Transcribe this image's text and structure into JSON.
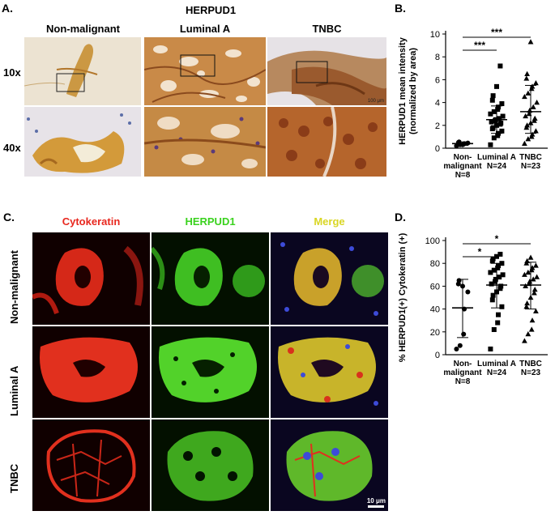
{
  "panel_a": {
    "label": "A.",
    "title": "HERPUD1",
    "columns": [
      "Non-malignant",
      "Luminal A",
      "TNBC"
    ],
    "rows": [
      "10x",
      "40x"
    ],
    "scale_text": "100 μm"
  },
  "panel_b": {
    "label": "B.",
    "chart_data": {
      "type": "scatter",
      "ylabel": "HERPUD1 mean intensity (normalized by area)",
      "ylabel_lines": [
        "HERPUD1 mean intensity",
        "(normalized by area)"
      ],
      "ylim": [
        0,
        10
      ],
      "yticks": [
        0,
        2,
        4,
        6,
        8,
        10
      ],
      "categories": [
        "Non-malignant N=8",
        "Luminal A N=24",
        "TNBC N=23"
      ],
      "category_lines": [
        [
          "Non-",
          "malignant",
          "N=8"
        ],
        [
          "Luminal A",
          "N=24"
        ],
        [
          "TNBC",
          "N=23"
        ]
      ],
      "significance": [
        {
          "from": "Non-malignant N=8",
          "to": "Luminal A N=24",
          "label": "***"
        },
        {
          "from": "Non-malignant N=8",
          "to": "TNBC N=23",
          "label": "***"
        }
      ],
      "series": [
        {
          "values": [
            0.2,
            0.3,
            0.35,
            0.4,
            0.45,
            0.5,
            0.55,
            0.3
          ],
          "mean": 0.4,
          "sd_low": 0.25,
          "sd_high": 0.55,
          "marker": "circle"
        },
        {
          "values": [
            0.3,
            0.9,
            1.1,
            1.3,
            1.5,
            1.7,
            1.8,
            2.0,
            2.1,
            2.2,
            2.3,
            2.4,
            2.5,
            2.6,
            2.8,
            3.0,
            3.2,
            3.4,
            3.6,
            3.9,
            4.2,
            4.6,
            5.4,
            7.2
          ],
          "mean": 2.5,
          "sd_low": 1.3,
          "sd_high": 3.7,
          "marker": "square"
        },
        {
          "values": [
            0.4,
            0.8,
            1.0,
            1.2,
            1.5,
            1.8,
            2.0,
            2.2,
            2.4,
            2.6,
            2.8,
            3.0,
            3.3,
            3.6,
            4.0,
            4.5,
            4.8,
            5.2,
            5.4,
            5.7,
            6.1,
            6.5,
            9.3
          ],
          "mean": 3.2,
          "sd_low": 1.3,
          "sd_high": 5.5,
          "marker": "triangle"
        }
      ]
    }
  },
  "panel_c": {
    "label": "C.",
    "channels": [
      {
        "name": "Cytokeratin",
        "color": "#e8271e"
      },
      {
        "name": "HERPUD1",
        "color": "#3ad21e"
      },
      {
        "name": "Merge",
        "color": "#e8e81e"
      }
    ],
    "rows": [
      "Non-malignant",
      "Luminal A",
      "TNBC"
    ],
    "scale_text": "10 μm"
  },
  "panel_d": {
    "label": "D.",
    "chart_data": {
      "type": "scatter",
      "ylabel": "% HERPUD1(+) Cytokeratin (+)",
      "ylim": [
        0,
        100
      ],
      "yticks": [
        0,
        20,
        40,
        60,
        80,
        100
      ],
      "categories": [
        "Non-malignant N=8",
        "Luminal A N=24",
        "TNBC N=23"
      ],
      "category_lines": [
        [
          "Non-",
          "malignant",
          "N=8"
        ],
        [
          "Luminal A",
          "N=24"
        ],
        [
          "TNBC",
          "N=23"
        ]
      ],
      "significance": [
        {
          "from": "Non-malignant N=8",
          "to": "Luminal A N=24",
          "label": "*"
        },
        {
          "from": "Non-malignant N=8",
          "to": "TNBC N=23",
          "label": "*"
        }
      ],
      "series": [
        {
          "values": [
            5,
            8,
            18,
            40,
            55,
            62,
            65,
            60
          ],
          "mean": 41,
          "sd_low": 15,
          "sd_high": 66,
          "marker": "circle"
        },
        {
          "values": [
            5,
            22,
            28,
            35,
            42,
            48,
            52,
            55,
            58,
            60,
            62,
            64,
            66,
            68,
            70,
            72,
            74,
            76,
            78,
            80,
            82,
            84,
            86,
            88
          ],
          "mean": 61,
          "sd_low": 41,
          "sd_high": 80,
          "marker": "square"
        },
        {
          "values": [
            12,
            18,
            22,
            30,
            38,
            42,
            45,
            50,
            54,
            57,
            60,
            62,
            64,
            66,
            68,
            70,
            72,
            74,
            76,
            78,
            80,
            82,
            85
          ],
          "mean": 61,
          "sd_low": 40,
          "sd_high": 81,
          "marker": "triangle"
        }
      ]
    }
  }
}
